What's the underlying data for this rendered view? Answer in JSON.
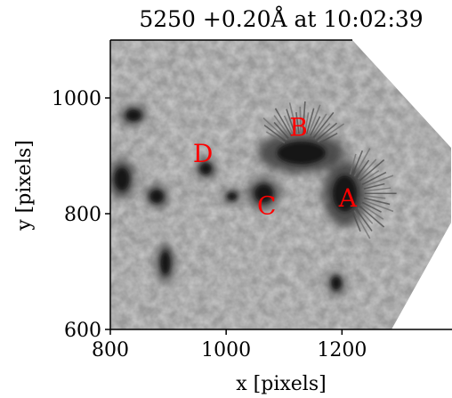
{
  "figure": {
    "title": "5250 +0.20Å at 10:02:39",
    "xlabel": "x [pixels]",
    "ylabel": "y [pixels]",
    "xlim": [
      800,
      1390
    ],
    "ylim": [
      600,
      1100
    ],
    "xticks": [
      800,
      1000,
      1200
    ],
    "yticks": [
      600,
      800,
      1000
    ],
    "colormap": "grayscale",
    "annotation_color": "#ff0000",
    "annotations": [
      {
        "label": "A",
        "x": 1210,
        "y": 828
      },
      {
        "label": "B",
        "x": 1125,
        "y": 950
      },
      {
        "label": "C",
        "x": 1070,
        "y": 815
      },
      {
        "label": "D",
        "x": 960,
        "y": 905
      }
    ],
    "dark_features": [
      {
        "name": "sunspot-a",
        "x": 1205,
        "y": 835,
        "rx": 30,
        "ry": 45
      },
      {
        "name": "sunspot-b",
        "x": 1130,
        "y": 905,
        "rx": 60,
        "ry": 28
      },
      {
        "name": "pore-c",
        "x": 1065,
        "y": 835,
        "rx": 22,
        "ry": 22
      },
      {
        "name": "pore-d",
        "x": 965,
        "y": 878,
        "rx": 14,
        "ry": 14
      },
      {
        "name": "pore-upper-left",
        "x": 840,
        "y": 970,
        "rx": 18,
        "ry": 14
      },
      {
        "name": "pore-left",
        "x": 820,
        "y": 860,
        "rx": 18,
        "ry": 28
      },
      {
        "name": "pore-mid-left",
        "x": 880,
        "y": 830,
        "rx": 16,
        "ry": 16
      },
      {
        "name": "pore-lower-left",
        "x": 895,
        "y": 715,
        "rx": 12,
        "ry": 28
      },
      {
        "name": "pore-lower-right",
        "x": 1190,
        "y": 680,
        "rx": 12,
        "ry": 16
      },
      {
        "name": "pore-center",
        "x": 1010,
        "y": 830,
        "rx": 12,
        "ry": 10
      }
    ]
  }
}
